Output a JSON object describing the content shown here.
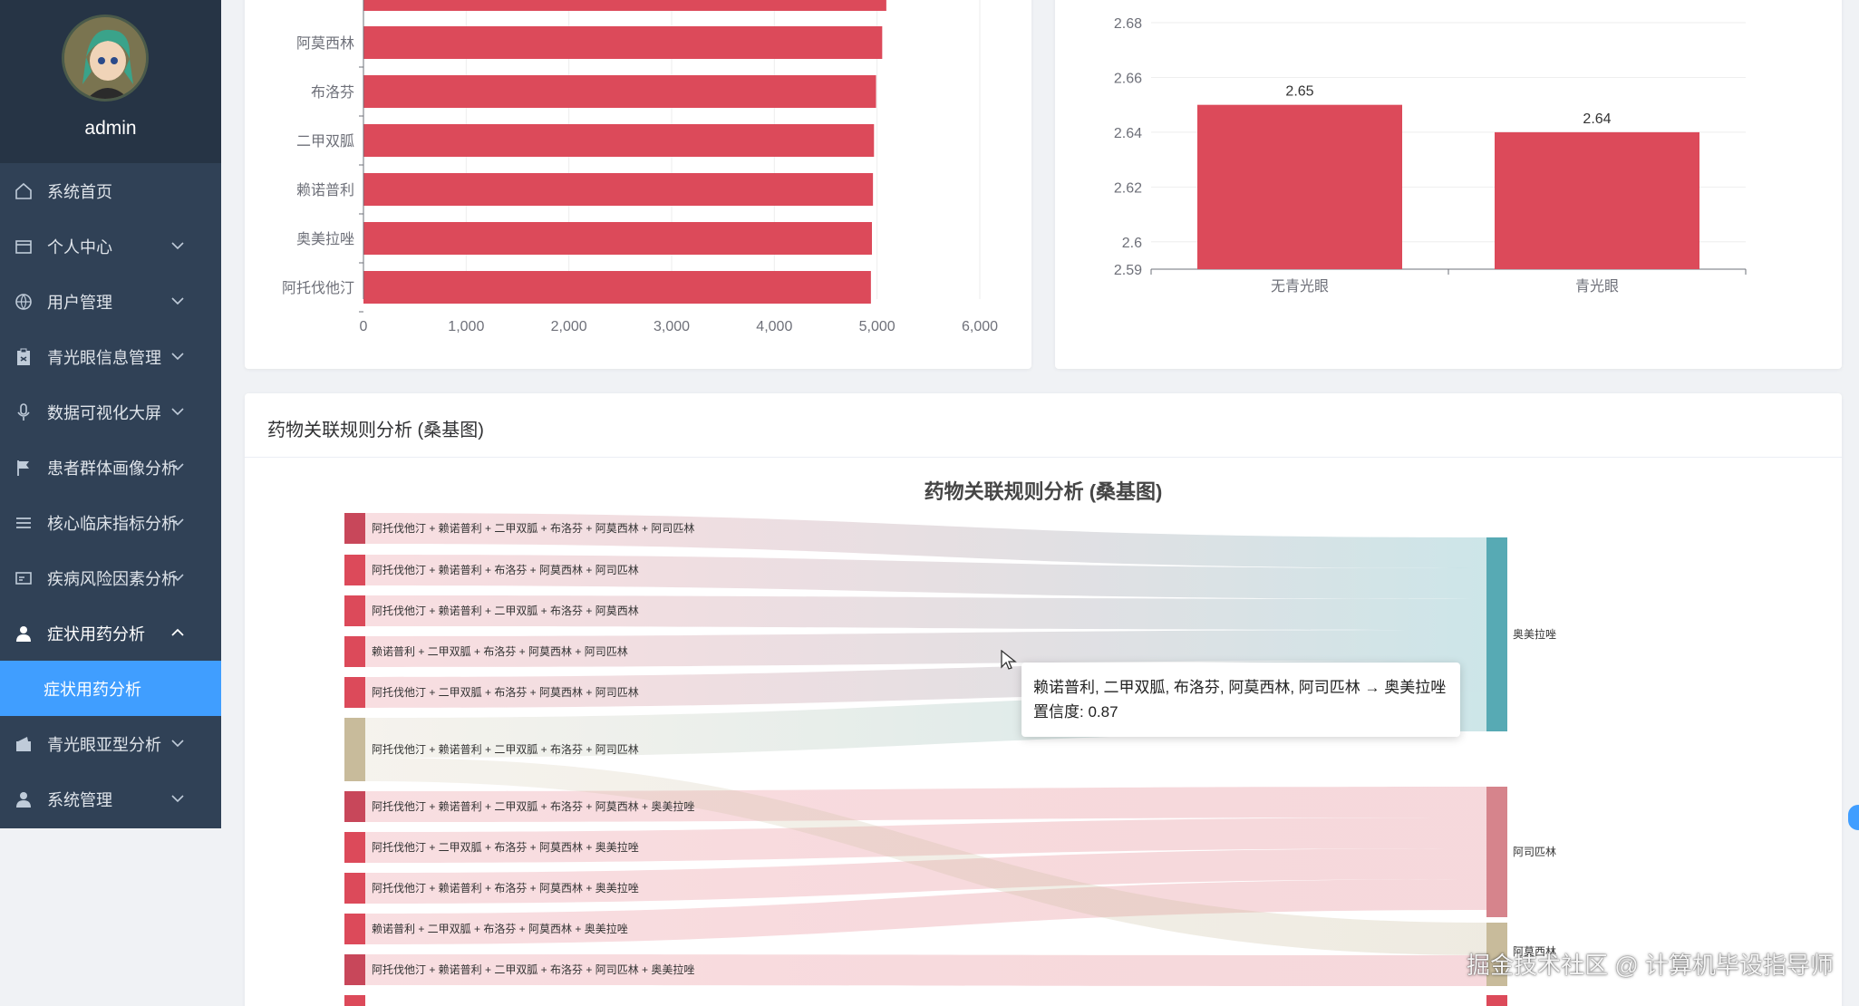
{
  "user": {
    "name": "admin"
  },
  "menu": [
    {
      "label": "系统首页",
      "icon": "home-icon",
      "expandable": false
    },
    {
      "label": "个人中心",
      "icon": "profile-card-icon",
      "expandable": true
    },
    {
      "label": "用户管理",
      "icon": "globe-icon",
      "expandable": true
    },
    {
      "label": "青光眼信息管理",
      "icon": "clipboard-icon",
      "expandable": true
    },
    {
      "label": "数据可视化大屏",
      "icon": "microphone-icon",
      "expandable": true
    },
    {
      "label": "患者群体画像分析",
      "icon": "flag-icon",
      "expandable": true
    },
    {
      "label": "核心临床指标分析",
      "icon": "list-icon",
      "expandable": true
    },
    {
      "label": "疾病风险因素分析",
      "icon": "id-card-icon",
      "expandable": true
    },
    {
      "label": "症状用药分析",
      "icon": "user-icon",
      "expandable": true,
      "expanded": true,
      "children": [
        "症状用药分析"
      ]
    },
    {
      "label": "青光眼亚型分析",
      "icon": "wallet-icon",
      "expandable": true
    },
    {
      "label": "系统管理",
      "icon": "user-icon",
      "expandable": true
    }
  ],
  "colors": {
    "bar": "#dc4a5a",
    "sidebar": "#304156",
    "active": "#409eff",
    "teal": "#57aab4",
    "tan": "#c8bb9b"
  },
  "chart_data": [
    {
      "type": "bar",
      "orientation": "horizontal",
      "categories": [
        "阿莫西林",
        "布洛芬",
        "二甲双胍",
        "赖诺普利",
        "奥美拉唑",
        "阿托伐他汀"
      ],
      "values": [
        5050,
        4990,
        4970,
        4960,
        4950,
        4940
      ],
      "partial_bar_above": 5090,
      "x_ticks": [
        "0",
        "1,000",
        "2,000",
        "3,000",
        "4,000",
        "5,000",
        "6,000"
      ],
      "xlim": [
        0,
        6000
      ]
    },
    {
      "type": "bar",
      "categories": [
        "无青光眼",
        "青光眼"
      ],
      "values": [
        2.65,
        2.64
      ],
      "data_labels": [
        "2.65",
        "2.64"
      ],
      "y_ticks": [
        "2.59",
        "2.6",
        "2.62",
        "2.64",
        "2.66",
        "2.68"
      ],
      "ylim": [
        2.59,
        2.68
      ]
    },
    {
      "type": "sankey",
      "title": "药物关联规则分析 (桑基图)",
      "sources": [
        "阿托伐他汀 + 赖诺普利 + 二甲双胍 + 布洛芬 + 阿莫西林 + 阿司匹林",
        "阿托伐他汀 + 赖诺普利 + 布洛芬 + 阿莫西林 + 阿司匹林",
        "阿托伐他汀 + 赖诺普利 + 二甲双胍 + 布洛芬 + 阿莫西林",
        "赖诺普利 + 二甲双胍 + 布洛芬 + 阿莫西林 + 阿司匹林",
        "阿托伐他汀 + 二甲双胍 + 布洛芬 + 阿莫西林 + 阿司匹林",
        "阿托伐他汀 + 赖诺普利 + 二甲双胍 + 布洛芬 + 阿司匹林",
        "阿托伐他汀 + 赖诺普利 + 二甲双胍 + 布洛芬 + 阿莫西林 + 奥美拉唑",
        "阿托伐他汀 + 二甲双胍 + 布洛芬 + 阿莫西林 + 奥美拉唑",
        "阿托伐他汀 + 赖诺普利 + 布洛芬 + 阿莫西林 + 奥美拉唑",
        "赖诺普利 + 二甲双胍 + 布洛芬 + 阿莫西林 + 奥美拉唑",
        "阿托伐他汀 + 赖诺普利 + 二甲双胍 + 布洛芬 + 阿司匹林 + 奥美拉唑"
      ],
      "targets": [
        "奥美拉唑",
        "阿司匹林",
        "阿莫西林"
      ]
    }
  ],
  "sankey_panel": {
    "header": "药物关联规则分析 (桑基图)"
  },
  "tooltip": {
    "rule": "赖诺普利, 二甲双胍, 布洛芬, 阿莫西林, 阿司匹林 → 奥美拉唑",
    "confidence": "置信度: 0.87"
  },
  "watermark": "掘金技术社区 @ 计算机毕设指导师"
}
